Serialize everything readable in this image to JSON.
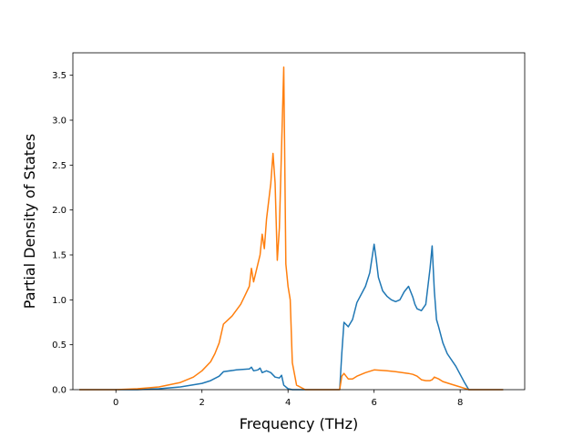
{
  "chart_data": {
    "type": "line",
    "xlabel": "Frequency (THz)",
    "ylabel": "Partial Density of States",
    "xlim": [
      -1.0,
      9.5
    ],
    "ylim": [
      0.0,
      3.75
    ],
    "xticks": [
      "0",
      "2",
      "4",
      "6",
      "8"
    ],
    "yticks": [
      "0.0",
      "0.5",
      "1.0",
      "1.5",
      "2.0",
      "2.5",
      "3.0",
      "3.5"
    ],
    "grid": false,
    "series": [
      {
        "color": "#1f77b4",
        "x": [
          -0.85,
          0.5,
          1.0,
          1.5,
          2.0,
          2.2,
          2.4,
          2.5,
          2.8,
          3.1,
          3.15,
          3.2,
          3.3,
          3.35,
          3.4,
          3.5,
          3.6,
          3.7,
          3.8,
          3.85,
          3.9,
          4.0,
          4.1,
          5.2,
          5.25,
          5.3,
          5.4,
          5.5,
          5.6,
          5.8,
          5.9,
          6.0,
          6.05,
          6.1,
          6.2,
          6.3,
          6.4,
          6.5,
          6.6,
          6.7,
          6.8,
          6.9,
          6.95,
          7.0,
          7.1,
          7.2,
          7.3,
          7.35,
          7.4,
          7.45,
          7.5,
          7.6,
          7.7,
          7.9,
          8.1,
          8.2,
          9.0
        ],
        "y": [
          0.0,
          0.0,
          0.01,
          0.03,
          0.07,
          0.1,
          0.15,
          0.2,
          0.22,
          0.23,
          0.25,
          0.21,
          0.22,
          0.24,
          0.19,
          0.21,
          0.19,
          0.14,
          0.13,
          0.16,
          0.05,
          0.01,
          0.0,
          0.0,
          0.4,
          0.75,
          0.7,
          0.78,
          0.97,
          1.15,
          1.3,
          1.62,
          1.45,
          1.25,
          1.1,
          1.04,
          1.0,
          0.98,
          1.0,
          1.09,
          1.15,
          1.03,
          0.95,
          0.9,
          0.88,
          0.95,
          1.35,
          1.6,
          1.1,
          0.78,
          0.7,
          0.52,
          0.4,
          0.26,
          0.08,
          0.0,
          0.0
        ]
      },
      {
        "color": "#ff7f0e",
        "x": [
          -0.85,
          0.0,
          0.5,
          1.0,
          1.5,
          1.8,
          2.0,
          2.2,
          2.3,
          2.4,
          2.5,
          2.7,
          2.9,
          3.0,
          3.1,
          3.15,
          3.2,
          3.3,
          3.35,
          3.4,
          3.45,
          3.5,
          3.6,
          3.65,
          3.7,
          3.75,
          3.8,
          3.85,
          3.9,
          3.95,
          4.0,
          4.05,
          4.1,
          4.2,
          4.4,
          5.2,
          5.25,
          5.3,
          5.4,
          5.5,
          5.6,
          5.8,
          6.0,
          6.3,
          6.5,
          6.8,
          6.9,
          7.0,
          7.1,
          7.2,
          7.3,
          7.35,
          7.4,
          7.5,
          7.6,
          7.8,
          8.0,
          8.2,
          9.0
        ],
        "y": [
          0.0,
          0.0,
          0.01,
          0.03,
          0.08,
          0.14,
          0.21,
          0.31,
          0.4,
          0.52,
          0.73,
          0.82,
          0.95,
          1.05,
          1.15,
          1.35,
          1.2,
          1.4,
          1.5,
          1.73,
          1.57,
          1.9,
          2.3,
          2.63,
          2.3,
          1.44,
          1.8,
          2.7,
          3.59,
          1.4,
          1.15,
          1.0,
          0.3,
          0.05,
          0.0,
          0.0,
          0.15,
          0.18,
          0.12,
          0.12,
          0.15,
          0.19,
          0.22,
          0.21,
          0.2,
          0.18,
          0.17,
          0.15,
          0.11,
          0.1,
          0.1,
          0.11,
          0.14,
          0.12,
          0.09,
          0.06,
          0.03,
          0.0,
          0.0
        ]
      }
    ]
  }
}
